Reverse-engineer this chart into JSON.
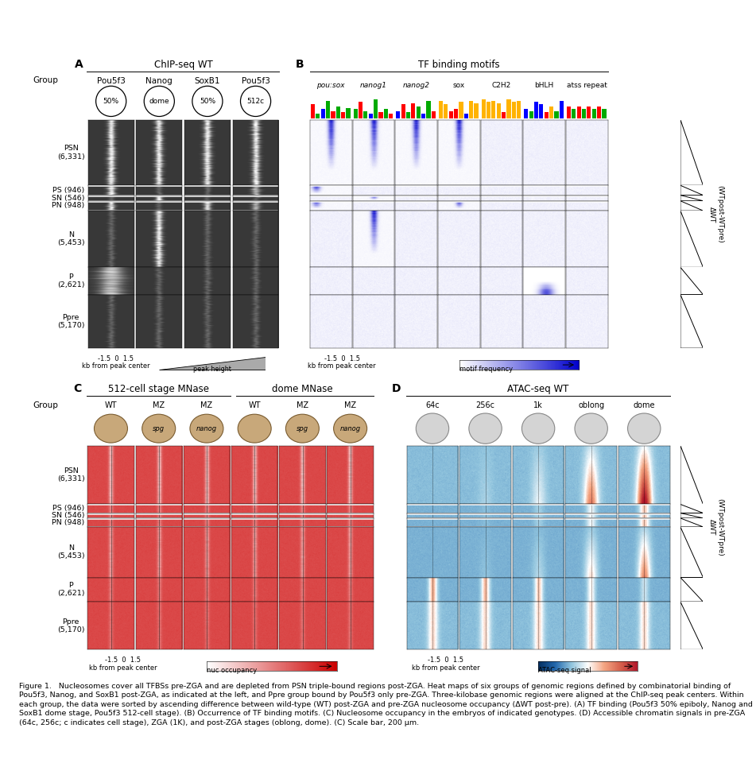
{
  "panel_A_title": "ChIP-seq WT",
  "panel_B_title": "TF binding motifs",
  "panel_C_title": "512-cell stage MNase",
  "panel_C2_title": "dome MNase",
  "panel_D_title": "ATAC-seq WT",
  "group_labels": [
    "PSN\n(6,331)",
    "PS (946)",
    "SN (546)",
    "PN (948)",
    "N\n(5,453)",
    "P\n(2,621)",
    "Ppre\n(5,170)"
  ],
  "group_sizes": [
    6331,
    946,
    546,
    948,
    5453,
    2621,
    5170
  ],
  "panel_A_cols": [
    "Pou5f3",
    "Nanog",
    "SoxB1",
    "Pou5f3"
  ],
  "panel_A_subtitles": [
    "50%",
    "dome",
    "50%",
    "512c"
  ],
  "panel_B_cols": [
    "pou:sox",
    "nanog1",
    "nanog2",
    "sox",
    "C2H2",
    "bHLH",
    "atss repeat"
  ],
  "panel_B_italic": [
    true,
    true,
    true,
    false,
    false,
    false,
    false
  ],
  "panel_C_cols": [
    "WT",
    "MZ\nspg",
    "MZ\nnanog",
    "WT",
    "MZ\nspg",
    "MZ\nnanog"
  ],
  "panel_D_cols": [
    "64c",
    "256c",
    "1k",
    "oblong",
    "dome"
  ],
  "right_label": "(WTpost-WTpre)\nΔWT",
  "fig_caption": "Figure 1.   Nucleosomes cover all TFBSs pre-ZGA and are depleted from PSN triple-bound regions post-ZGA. Heat maps of six groups of genomic regions defined by combinatorial binding of Pou5f3, Nanog, and SoxB1 post-ZGA, as indicated at the left, and Ppre group bound by Pou5f3 only pre-ZGA. Three-kilobase genomic regions were aligned at the ChIP-seq peak centers. Within each group, the data were sorted by ascending difference between wild-type (WT) post-ZGA and pre-ZGA nucleosome occupancy (ΔWT post-pre). (A) TF binding (Pou5f3 50% epiboly, Nanog and SoxB1 dome stage, Pou5f3 512-cell stage). (B) Occurrence of TF binding motifs. (C) Nucleosome occupancy in the embryos of indicated genotypes. (D) Accessible chromatin signals in pre-ZGA (64c, 256c; c indicates cell stage), ZGA (1K), and post-ZGA stages (oblong, dome). (C) Scale bar, 200 μm."
}
